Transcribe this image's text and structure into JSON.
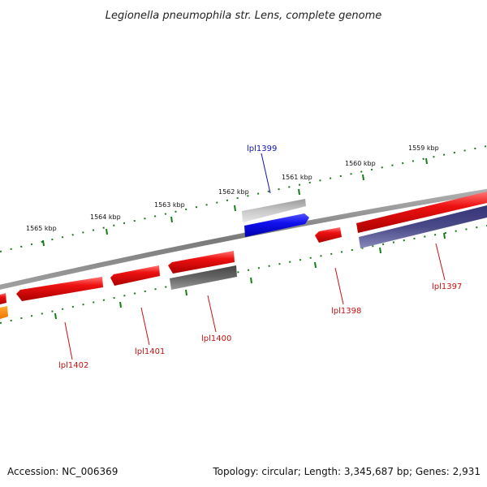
{
  "title": "Legionella pneumophila str. Lens, complete genome",
  "footer": {
    "accession": "Accession: NC_006369",
    "summary": "Topology: circular; Length: 3,345,687 bp; Genes: 2,931"
  },
  "colors": {
    "backbone": "#8a8a8a",
    "tick": "#1a7a1a",
    "cds_red": "#ee1111",
    "cds_blue": "#1111ee",
    "cds_gray": "#a8a8a8",
    "cds_dark_gray": "#555555",
    "cds_navy": "#4a4a88",
    "cds_orange": "#ff8800",
    "label_red": "#cc1111",
    "label_blue": "#1111bb"
  },
  "scale_labels": [
    "1565 kbp",
    "1564 kbp",
    "1563 kbp",
    "1562 kbp",
    "1561 kbp",
    "1560 kbp",
    "1559 kbp"
  ],
  "gene_labels": [
    {
      "id": "lpl1399",
      "text": "lpl1399",
      "color": "blue"
    },
    {
      "id": "lpl1397",
      "text": "lpl1397",
      "color": "red"
    },
    {
      "id": "lpl1398",
      "text": "lpl1398",
      "color": "red"
    },
    {
      "id": "lpl1400",
      "text": "lpl1400",
      "color": "red"
    },
    {
      "id": "lpl1401",
      "text": "lpl1401",
      "color": "red"
    },
    {
      "id": "lpl1402",
      "text": "lpl1402",
      "color": "red"
    }
  ]
}
